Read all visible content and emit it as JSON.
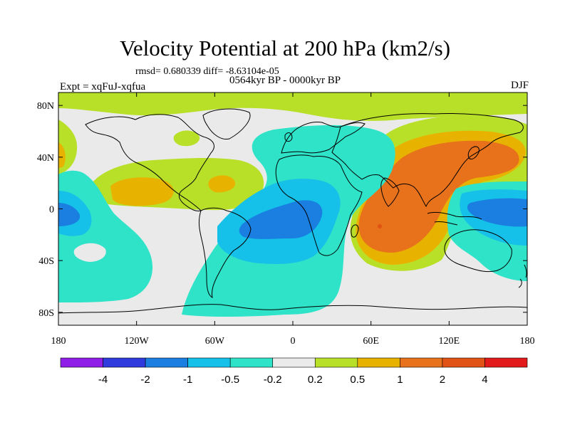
{
  "header": {
    "title": "Velocity Potential at 200 hPa (km2/s)",
    "stats": "rmsd= 0.680339 diff= -8.63104e-05",
    "period": "0564kyr BP - 0000kyr BP",
    "expt": "Expt = xqFuJ-xqfua",
    "season": "DJF"
  },
  "axes": {
    "lat_labels": [
      "80N",
      "40N",
      "0",
      "40S",
      "80S"
    ],
    "lat_values": [
      80,
      40,
      0,
      -40,
      -80
    ],
    "lon_labels": [
      "180",
      "120W",
      "60W",
      "0",
      "60E",
      "120E",
      "180"
    ],
    "lon_values": [
      -180,
      -120,
      -60,
      0,
      60,
      120,
      180
    ]
  },
  "colorbar": {
    "colors": [
      "#8f1fe8",
      "#2f3bdc",
      "#1a7fe0",
      "#15c1e8",
      "#2ee3c8",
      "#eaeaea",
      "#b9e029",
      "#e8b300",
      "#e8711b",
      "#e05314",
      "#e31a1a"
    ],
    "labels": [
      "-4",
      "-2",
      "-1",
      "-0.5",
      "-0.2",
      "0.2",
      "0.5",
      "1",
      "2",
      "4"
    ]
  },
  "field": {
    "background": "#eaeaea",
    "colors": {
      "green": "#b9e029",
      "yellow": "#e8b300",
      "orange": "#e8711b",
      "red": "#e05314",
      "teal": "#2ee3c8",
      "cyan": "#15c1e8",
      "blue": "#1a7fe0"
    }
  }
}
